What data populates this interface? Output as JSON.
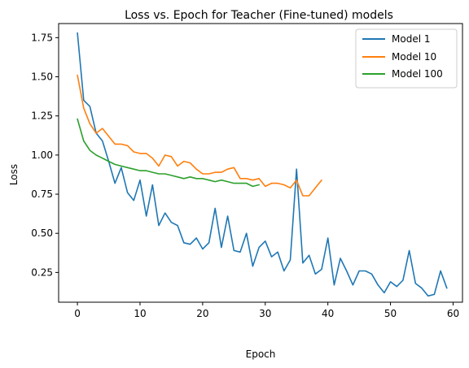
{
  "chart_data": {
    "type": "line",
    "title": "Loss vs. Epoch for Teacher (Fine-tuned) models",
    "xlabel": "Epoch",
    "ylabel": "Loss",
    "xlim": [
      -3,
      61.5
    ],
    "ylim": [
      0.06,
      1.84
    ],
    "xticks": [
      0,
      10,
      20,
      30,
      40,
      50,
      60
    ],
    "yticks": [
      0.25,
      0.5,
      0.75,
      1.0,
      1.25,
      1.5,
      1.75
    ],
    "ytick_labels": [
      "0.25",
      "0.50",
      "0.75",
      "1.00",
      "1.25",
      "1.50",
      "1.75"
    ],
    "grid": false,
    "legend_position": "top-right",
    "series": [
      {
        "name": "Model 1",
        "color": "#1f77b4",
        "values": [
          1.78,
          1.35,
          1.31,
          1.14,
          1.09,
          0.96,
          0.82,
          0.92,
          0.76,
          0.71,
          0.84,
          0.61,
          0.81,
          0.55,
          0.63,
          0.57,
          0.55,
          0.44,
          0.43,
          0.47,
          0.4,
          0.44,
          0.66,
          0.41,
          0.61,
          0.39,
          0.38,
          0.5,
          0.29,
          0.41,
          0.45,
          0.35,
          0.38,
          0.26,
          0.33,
          0.91,
          0.31,
          0.36,
          0.24,
          0.27,
          0.47,
          0.17,
          0.34,
          0.26,
          0.17,
          0.26,
          0.26,
          0.24,
          0.17,
          0.12,
          0.19,
          0.16,
          0.2,
          0.39,
          0.18,
          0.15,
          0.1,
          0.11,
          0.26,
          0.15
        ]
      },
      {
        "name": "Model 10",
        "color": "#ff7f0e",
        "values": [
          1.51,
          1.3,
          1.2,
          1.14,
          1.17,
          1.12,
          1.07,
          1.07,
          1.06,
          1.02,
          1.01,
          1.01,
          0.98,
          0.93,
          1.0,
          0.99,
          0.93,
          0.96,
          0.95,
          0.91,
          0.88,
          0.88,
          0.89,
          0.89,
          0.91,
          0.92,
          0.85,
          0.85,
          0.84,
          0.85,
          0.8,
          0.82,
          0.82,
          0.81,
          0.79,
          0.84,
          0.74,
          0.74,
          0.79,
          0.84
        ]
      },
      {
        "name": "Model 100",
        "color": "#2ca02c",
        "values": [
          1.23,
          1.09,
          1.03,
          1.0,
          0.98,
          0.96,
          0.94,
          0.93,
          0.92,
          0.91,
          0.9,
          0.9,
          0.89,
          0.88,
          0.88,
          0.87,
          0.86,
          0.85,
          0.86,
          0.85,
          0.85,
          0.84,
          0.83,
          0.84,
          0.83,
          0.82,
          0.82,
          0.82,
          0.8,
          0.81
        ]
      }
    ]
  }
}
